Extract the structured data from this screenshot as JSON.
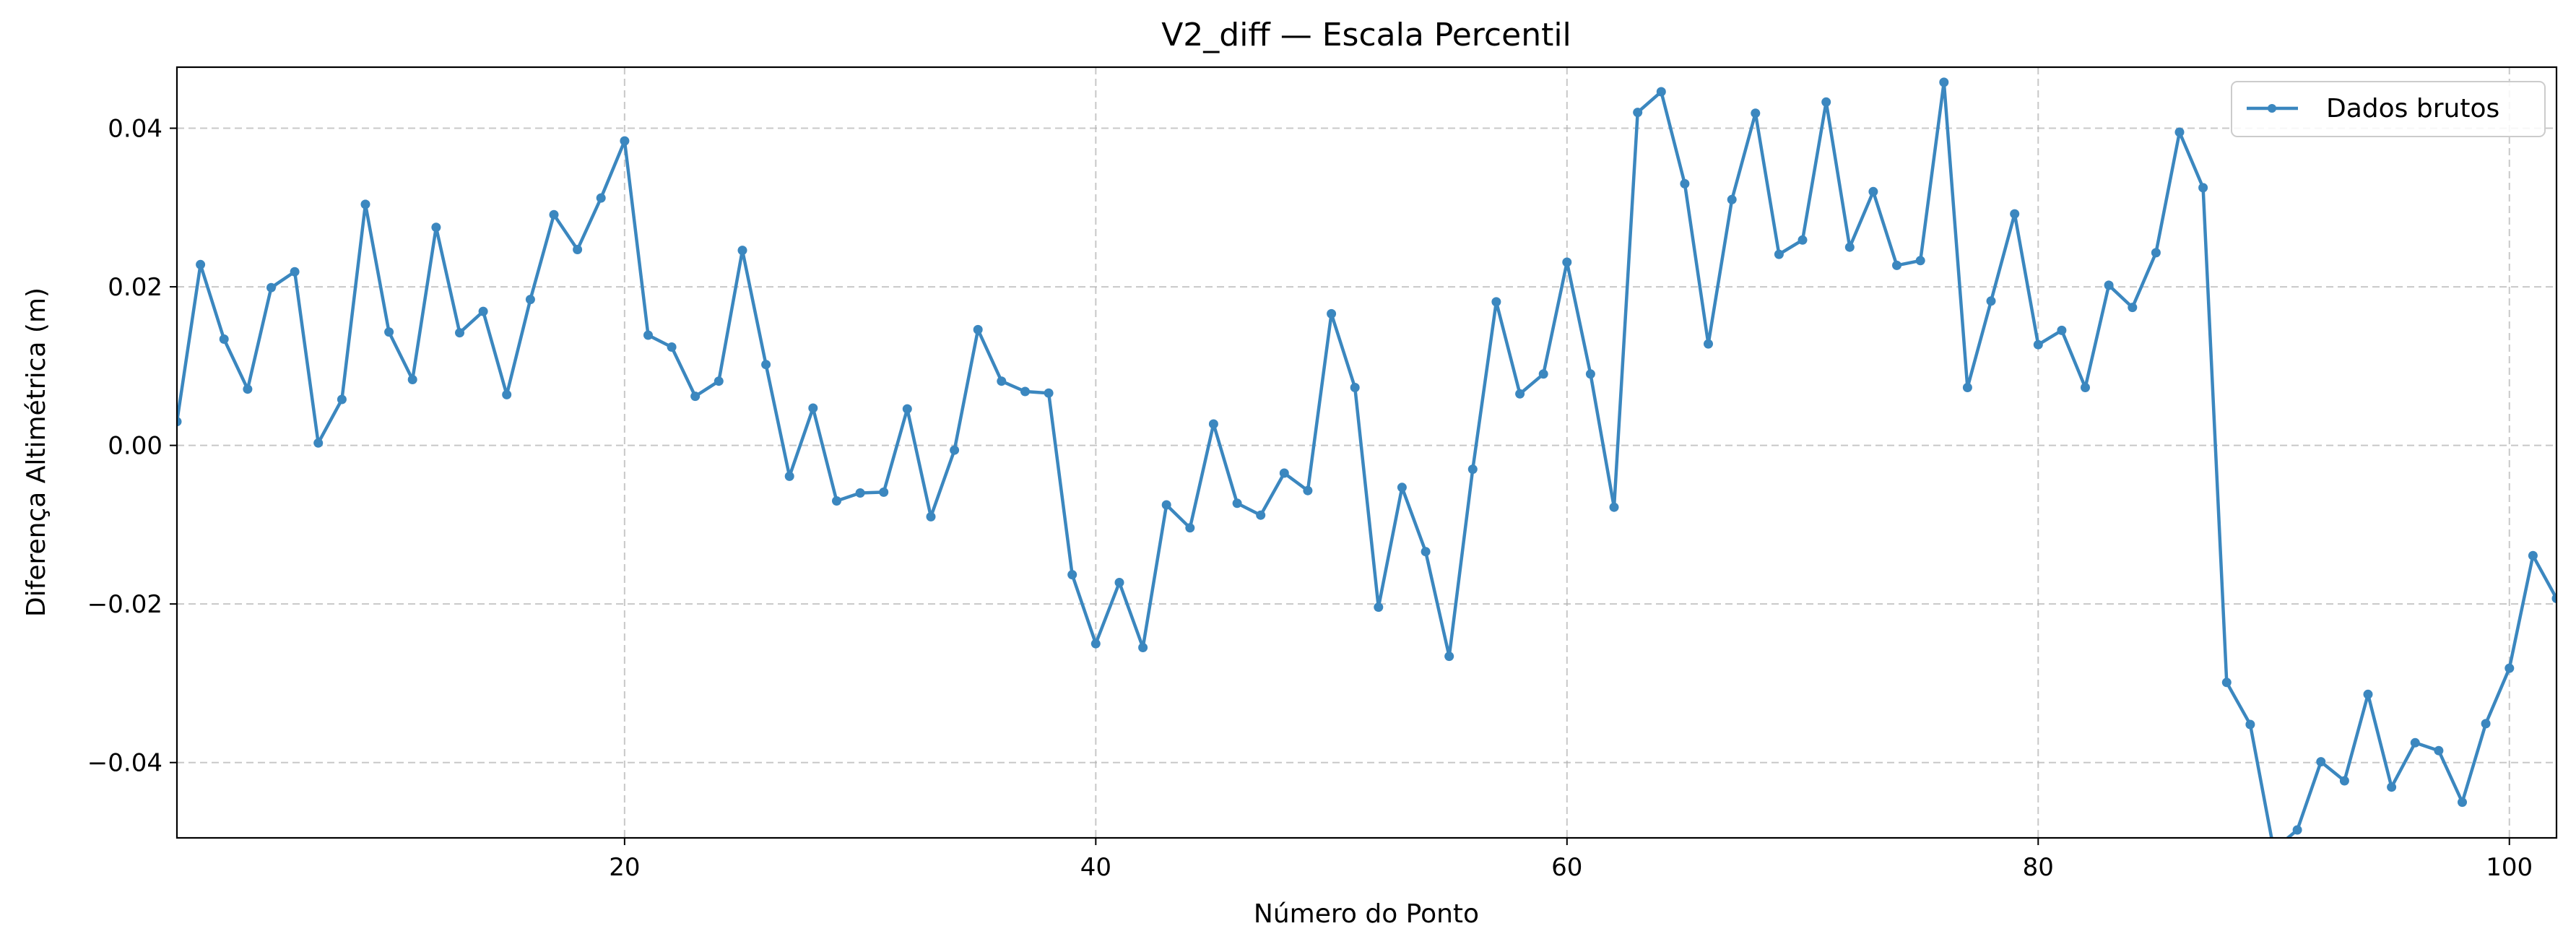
{
  "chart_data": {
    "type": "line",
    "title": "V2_diff — Escala Percentil",
    "xlabel": "Número do Ponto",
    "ylabel": "Diferença Altimétrica (m)",
    "xlim": [
      1,
      102
    ],
    "ylim": [
      -0.0495,
      0.0477
    ],
    "x_ticks": [
      20,
      40,
      60,
      80,
      100
    ],
    "x_tick_labels": [
      "20",
      "40",
      "60",
      "80",
      "100"
    ],
    "y_ticks": [
      -0.04,
      -0.02,
      0.0,
      0.02,
      0.04
    ],
    "y_tick_labels": [
      "−0.04",
      "−0.02",
      "0.00",
      "0.02",
      "0.04"
    ],
    "grid": true,
    "legend_position": "top-right",
    "color": "#3b87bf",
    "series": [
      {
        "name": "Dados brutos",
        "x": [
          1,
          2,
          3,
          4,
          5,
          6,
          7,
          8,
          9,
          10,
          11,
          12,
          13,
          14,
          15,
          16,
          17,
          18,
          19,
          20,
          21,
          22,
          23,
          24,
          25,
          26,
          27,
          28,
          29,
          30,
          31,
          32,
          33,
          34,
          35,
          36,
          37,
          38,
          39,
          40,
          41,
          42,
          43,
          44,
          45,
          46,
          47,
          48,
          49,
          50,
          51,
          52,
          53,
          54,
          55,
          56,
          57,
          58,
          59,
          60,
          61,
          62,
          63,
          64,
          65,
          66,
          67,
          68,
          69,
          70,
          71,
          72,
          73,
          74,
          75,
          76,
          77,
          78,
          79,
          80,
          81,
          82,
          83,
          84,
          85,
          86,
          87,
          88,
          89,
          90,
          91,
          92,
          93,
          94,
          95,
          96,
          97,
          98,
          99,
          100,
          101,
          102
        ],
        "values": [
          0.003,
          0.0228,
          0.0134,
          0.0071,
          0.0199,
          0.0219,
          0.0003,
          0.0058,
          0.0304,
          0.0143,
          0.0083,
          0.0275,
          0.0142,
          0.0169,
          0.0064,
          0.0184,
          0.0291,
          0.0247,
          0.0312,
          0.0384,
          0.0139,
          0.0124,
          0.0062,
          0.0081,
          0.0246,
          0.0102,
          -0.0039,
          0.0047,
          -0.007,
          -0.006,
          -0.0059,
          0.0046,
          -0.009,
          -0.0006,
          0.0146,
          0.0081,
          0.0068,
          0.0066,
          -0.0163,
          -0.025,
          -0.0173,
          -0.0255,
          -0.0075,
          -0.0104,
          0.0027,
          -0.0073,
          -0.0088,
          -0.0035,
          -0.0057,
          0.0166,
          0.0073,
          -0.0204,
          -0.0053,
          -0.0134,
          -0.0266,
          -0.003,
          0.0181,
          0.0065,
          0.009,
          0.0231,
          0.009,
          -0.0078,
          0.042,
          0.0446,
          0.033,
          0.0128,
          0.031,
          0.0419,
          0.0241,
          0.0259,
          0.0433,
          0.025,
          0.032,
          0.0227,
          0.0233,
          0.0458,
          0.0073,
          0.0182,
          0.0292,
          0.0127,
          0.0145,
          0.0073,
          0.0202,
          0.0174,
          0.0243,
          0.0395,
          0.0325,
          -0.0299,
          -0.0352,
          -0.051,
          -0.0485,
          -0.0399,
          -0.0423,
          -0.0314,
          -0.0431,
          -0.0375,
          -0.0385,
          -0.045,
          -0.0351,
          -0.0281,
          -0.0139,
          -0.0193
        ]
      }
    ]
  }
}
